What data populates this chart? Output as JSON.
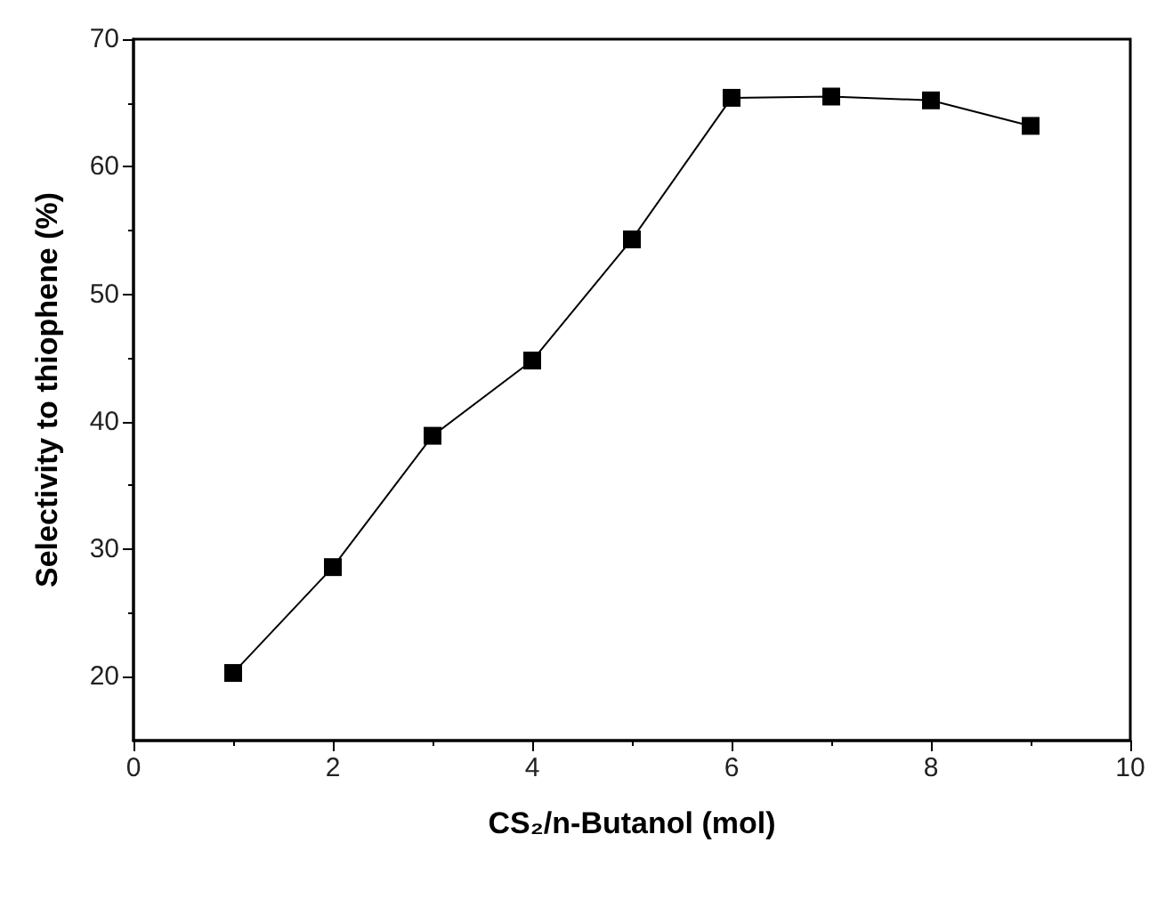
{
  "chart_data": {
    "type": "line",
    "xlabel": "CS₂/n-Butanol (mol)",
    "ylabel": "Selectivity to thiophene (%)",
    "x": [
      1,
      2,
      3,
      4,
      5,
      6,
      7,
      8,
      9
    ],
    "series": [
      {
        "color": "#000000",
        "values": [
          20.3,
          28.6,
          38.9,
          44.8,
          54.3,
          65.4,
          65.5,
          65.2,
          63.2
        ]
      }
    ],
    "xlim": [
      0,
      10
    ],
    "xticks": [
      0,
      2,
      4,
      6,
      8,
      10
    ],
    "ylim": [
      15,
      70
    ],
    "yticks": [
      20,
      30,
      40,
      50,
      60,
      70
    ],
    "marker": "square",
    "line_style": "solid"
  }
}
